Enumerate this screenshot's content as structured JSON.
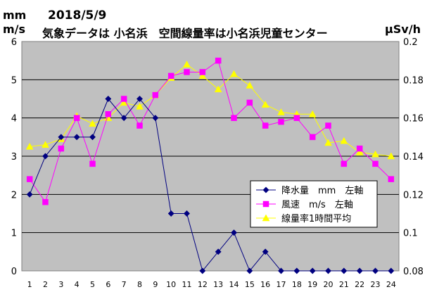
{
  "chart_data": {
    "type": "line",
    "title": "2018/5/9",
    "subtitle": "気象データは 小名浜　空間線量率は小名浜児童センター",
    "ylabel_left": [
      "mm",
      "m/s"
    ],
    "ylabel_right": "μSv/h",
    "x": [
      1,
      2,
      3,
      4,
      5,
      6,
      7,
      8,
      9,
      10,
      11,
      12,
      13,
      14,
      15,
      16,
      17,
      18,
      19,
      20,
      21,
      22,
      23,
      24
    ],
    "ylim_left": [
      0,
      6
    ],
    "ylim_right": [
      0.08,
      0.2
    ],
    "yticks_left": [
      "0",
      "1",
      "2",
      "3",
      "4",
      "5",
      "6"
    ],
    "yticks_right": [
      "0.08",
      "0.1",
      "0.12",
      "0.14",
      "0.16",
      "0.18",
      "0.2"
    ],
    "grid": true,
    "legend_position": "lower-right",
    "series": [
      {
        "name": "降水量　mm　左軸",
        "axis": "left",
        "color": "#000080",
        "marker": "diamond",
        "values": [
          2,
          3,
          3.5,
          3.5,
          3.5,
          4.5,
          4,
          4.5,
          4,
          1.5,
          1.5,
          0,
          0.5,
          1,
          0,
          0.5,
          0,
          0,
          0,
          0,
          0,
          0,
          0,
          0
        ]
      },
      {
        "name": "風速　m/s　左軸",
        "axis": "left",
        "color": "#ff00ff",
        "marker": "square",
        "values": [
          2.4,
          1.8,
          3.2,
          4,
          2.8,
          4.1,
          4.5,
          3.8,
          4.6,
          5.1,
          5.2,
          5.2,
          5.5,
          4,
          4.4,
          3.8,
          3.9,
          4,
          3.5,
          3.8,
          2.8,
          3.2,
          2.8,
          2.4
        ]
      },
      {
        "name": "線量率1時間平均",
        "axis": "right",
        "color": "#ffff00",
        "marker": "triangle",
        "values": [
          0.145,
          0.146,
          0.149,
          0.161,
          0.157,
          0.16,
          0.168,
          0.166,
          0.172,
          0.181,
          0.188,
          0.182,
          0.175,
          0.183,
          0.177,
          0.167,
          0.163,
          0.162,
          0.162,
          0.147,
          0.148,
          0.142,
          0.141,
          0.14
        ]
      }
    ]
  }
}
